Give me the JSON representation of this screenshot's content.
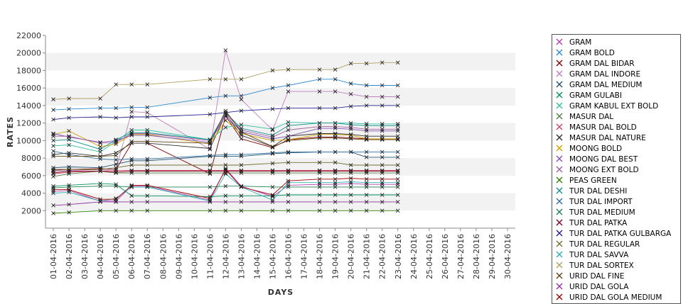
{
  "chart_data": {
    "type": "line",
    "title": "",
    "xlabel": "DAYS",
    "ylabel": "RATES",
    "ylim": [
      0,
      22000
    ],
    "yticks": [
      2000,
      4000,
      6000,
      8000,
      10000,
      12000,
      14000,
      16000,
      18000,
      20000,
      22000
    ],
    "ytick_labels": [
      "2000",
      "4000",
      "6000",
      "8000",
      "10000",
      "12000",
      "14000",
      "16000",
      "18000",
      "20000",
      "22000"
    ],
    "x_categories": [
      "01-04-2016",
      "02-04-2016",
      "03-04-2016",
      "04-04-2016",
      "05-04-2016",
      "06-04-2016",
      "07-04-2016",
      "08-04-2016",
      "09-04-2016",
      "10-04-2016",
      "11-04-2016",
      "12-04-2016",
      "13-04-2016",
      "14-04-2016",
      "15-04-2016",
      "16-04-2016",
      "17-04-2016",
      "18-04-2016",
      "19-04-2016",
      "20-04-2016",
      "21-04-2016",
      "22-04-2016",
      "23-04-2016",
      "24-04-2016",
      "25-04-2016",
      "26-04-2016",
      "27-04-2016",
      "28-04-2016",
      "29-04-2016",
      "30-04-2016"
    ],
    "grid": "alternating horizontal bands",
    "legend_position": "right",
    "x": [
      "01-04-2016",
      "02-04-2016",
      "04-04-2016",
      "05-04-2016",
      "06-04-2016",
      "07-04-2016",
      "11-04-2016",
      "12-04-2016",
      "13-04-2016",
      "15-04-2016",
      "16-04-2016",
      "18-04-2016",
      "19-04-2016",
      "20-04-2016",
      "21-04-2016",
      "22-04-2016",
      "23-04-2016"
    ],
    "series": [
      {
        "name": "GRAM",
        "color": "#b040b0",
        "values": [
          4200,
          4300,
          3100,
          3100,
          4800,
          4800,
          3200,
          6800,
          4800,
          3600,
          4900,
          5000,
          5000,
          5100,
          5000,
          5000,
          5000
        ]
      },
      {
        "name": "GRAM BOLD",
        "color": "#2a8ad0",
        "values": [
          13500,
          13600,
          13700,
          13700,
          13800,
          13800,
          14900,
          15100,
          15100,
          16000,
          16300,
          17000,
          17000,
          16500,
          16300,
          16300,
          16300
        ]
      },
      {
        "name": "GRAM DAL BIDAR",
        "color": "#800000",
        "values": [
          6700,
          6700,
          6800,
          6700,
          9700,
          9700,
          6200,
          12800,
          10200,
          9200,
          10100,
          10400,
          10400,
          10300,
          10200,
          10200,
          10200
        ]
      },
      {
        "name": "GRAM DAL INDORE",
        "color": "#c080c0",
        "values": [
          6500,
          6600,
          6700,
          6700,
          13300,
          13200,
          9000,
          20300,
          14700,
          11200,
          15600,
          15600,
          15600,
          15300,
          15000,
          15000,
          15000
        ]
      },
      {
        "name": "GRAM DAL MEDIUM",
        "color": "#205070",
        "values": [
          6900,
          7000,
          6900,
          7300,
          7700,
          7700,
          8200,
          8200,
          8200,
          8500,
          8600,
          8700,
          8700,
          8700,
          8100,
          8100,
          8100
        ]
      },
      {
        "name": "GRAM GULABI",
        "color": "#009060",
        "values": [
          4800,
          4900,
          5100,
          5000,
          3700,
          3700,
          3600,
          3700,
          3700,
          3700,
          3800,
          3800,
          3800,
          3800,
          3800,
          3800,
          3800
        ]
      },
      {
        "name": "GRAM KABUL EXT BOLD",
        "color": "#30c0a0",
        "values": [
          9400,
          9500,
          8700,
          9900,
          11200,
          11200,
          10100,
          11500,
          11800,
          11300,
          12100,
          12000,
          12000,
          12000,
          11900,
          11900,
          11900
        ]
      },
      {
        "name": "MASUR DAL",
        "color": "#508040",
        "values": [
          5900,
          6200,
          6500,
          6300,
          6300,
          6300,
          6300,
          6300,
          6300,
          6300,
          6300,
          6300,
          6300,
          6300,
          6300,
          6300,
          6300
        ]
      },
      {
        "name": "MASUR DAL BOLD",
        "color": "#d04060",
        "values": [
          6200,
          6400,
          6500,
          6600,
          6600,
          6600,
          6600,
          6600,
          6600,
          6600,
          6600,
          6600,
          6600,
          6600,
          6600,
          6600,
          6600
        ]
      },
      {
        "name": "MASUR DAL NATURE",
        "color": "#303030",
        "values": [
          8400,
          8600,
          8200,
          8600,
          9700,
          9700,
          9100,
          13000,
          10600,
          9300,
          10500,
          10800,
          10800,
          10700,
          10500,
          10500,
          10500
        ]
      },
      {
        "name": "MOONG BOLD",
        "color": "#d0a000",
        "values": [
          10700,
          11100,
          9300,
          9600,
          10700,
          10700,
          9600,
          12300,
          10800,
          10000,
          10100,
          10700,
          10700,
          10600,
          10200,
          10200,
          10200
        ]
      },
      {
        "name": "MOONG DAL BEST",
        "color": "#8050b0",
        "values": [
          10800,
          10400,
          9800,
          10000,
          10600,
          10600,
          9800,
          12900,
          11000,
          10200,
          10500,
          11400,
          11400,
          11300,
          11100,
          11100,
          11100
        ]
      },
      {
        "name": "MOONG EXT BOLD",
        "color": "#a060a0",
        "values": [
          10500,
          10500,
          9700,
          9800,
          10800,
          10800,
          10000,
          13100,
          11200,
          10400,
          11200,
          11600,
          11600,
          11500,
          11300,
          11300,
          11300
        ]
      },
      {
        "name": "PEAS GREEN",
        "color": "#308000",
        "values": [
          1700,
          1800,
          2000,
          2000,
          2000,
          2000,
          2000,
          2000,
          2000,
          2000,
          2000,
          2000,
          2000,
          2000,
          2000,
          2000,
          2000
        ]
      },
      {
        "name": "TUR DAL DESHI",
        "color": "#109090",
        "values": [
          10000,
          10100,
          9000,
          10100,
          10900,
          10900,
          10100,
          13200,
          11400,
          10600,
          11700,
          12000,
          12000,
          11800,
          11700,
          11700,
          11700
        ]
      },
      {
        "name": "TUR DAL IMPORT",
        "color": "#3070a0",
        "values": [
          8800,
          8400,
          7900,
          7800,
          7900,
          7900,
          8300,
          8400,
          8400,
          8600,
          8700,
          8700,
          8700,
          8700,
          8700,
          8700,
          8700
        ]
      },
      {
        "name": "TUR DAL MEDIUM",
        "color": "#208050",
        "values": [
          4600,
          4700,
          4800,
          4800,
          4700,
          4700,
          4700,
          4800,
          4800,
          4700,
          4700,
          4700,
          4700,
          4700,
          4700,
          4700,
          4700
        ]
      },
      {
        "name": "TUR DAL PATKA",
        "color": "#800020",
        "values": [
          6300,
          6500,
          6500,
          6400,
          6500,
          6500,
          6500,
          6500,
          6500,
          6500,
          6500,
          6500,
          6500,
          6500,
          6500,
          6500,
          6500
        ]
      },
      {
        "name": "TUR DAL PATKA GULBARGA",
        "color": "#202090",
        "values": [
          12400,
          12600,
          12700,
          12600,
          12700,
          12700,
          13000,
          13200,
          13400,
          13600,
          13700,
          13700,
          13700,
          13900,
          14000,
          14000,
          14000
        ]
      },
      {
        "name": "TUR DAL REGULAR",
        "color": "#707030",
        "values": [
          6600,
          6700,
          6700,
          6900,
          7200,
          7200,
          7200,
          7200,
          7200,
          7400,
          7500,
          7500,
          7500,
          7200,
          7200,
          7200,
          7200
        ]
      },
      {
        "name": "TUR DAL SAVVA",
        "color": "#30b0b0",
        "values": [
          4000,
          4100,
          3100,
          3400,
          4700,
          4700,
          3100,
          6200,
          4700,
          3200,
          5200,
          5200,
          5200,
          5300,
          5200,
          5200,
          5200
        ]
      },
      {
        "name": "TUR DAL SORTEX",
        "color": "#b0a060",
        "values": [
          14700,
          14800,
          14800,
          16400,
          16400,
          16400,
          17000,
          17000,
          17000,
          18000,
          18100,
          18100,
          18100,
          18800,
          18800,
          18900,
          18900
        ]
      },
      {
        "name": "URID DAL FINE",
        "color": "#604010",
        "values": [
          8200,
          8200,
          8200,
          8300,
          9900,
          9900,
          9700,
          13400,
          11000,
          9300,
          10000,
          10300,
          10300,
          10200,
          10100,
          10100,
          10100
        ]
      },
      {
        "name": "URID DAL GOLA",
        "color": "#9030a0",
        "values": [
          2600,
          2700,
          3000,
          3000,
          3000,
          3000,
          3000,
          3000,
          3000,
          3000,
          3000,
          3000,
          3000,
          3000,
          3000,
          3000,
          3000
        ]
      },
      {
        "name": "URID DAL GOLA MEDIUM",
        "color": "#a00000",
        "values": [
          4400,
          4400,
          3300,
          3300,
          4900,
          4900,
          3400,
          6700,
          4700,
          3800,
          5400,
          5600,
          5600,
          5700,
          5600,
          5600,
          5600
        ]
      }
    ]
  }
}
